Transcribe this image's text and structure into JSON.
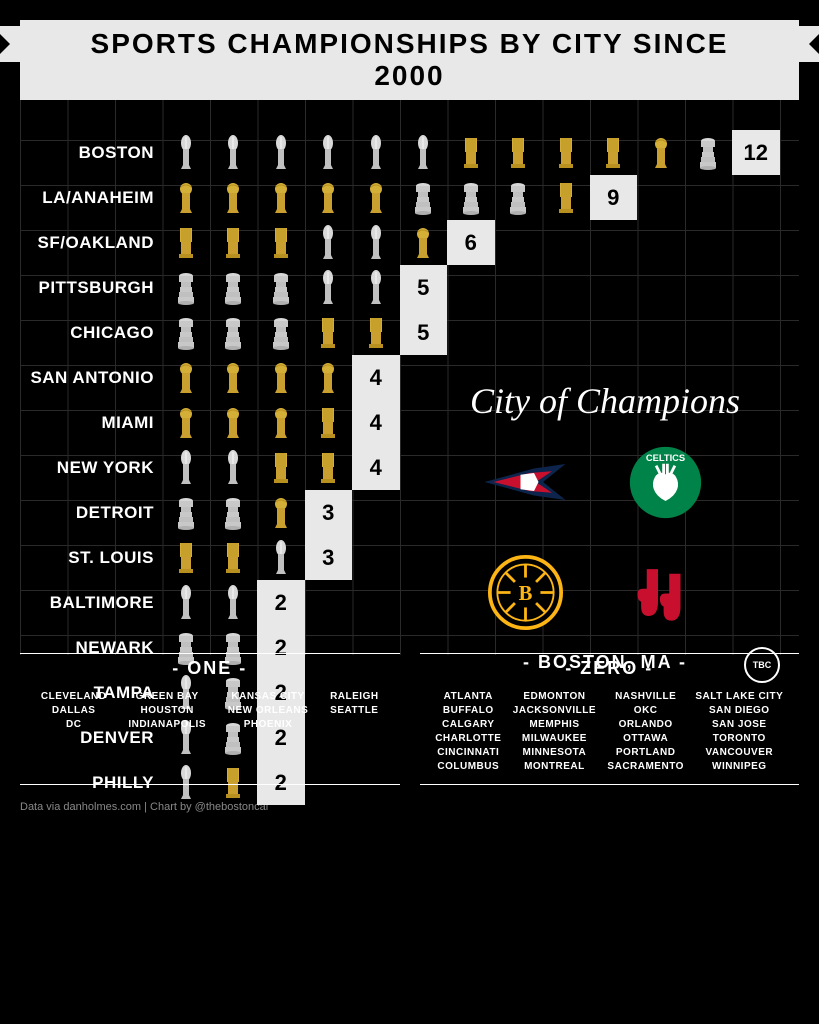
{
  "title": "SPORTS CHAMPIONSHIPS BY CITY SINCE 2000",
  "trophy_types": {
    "nfl": {
      "name": "lombardi",
      "color": "#c0c0c0"
    },
    "nba": {
      "name": "obrien",
      "color": "#d4af37"
    },
    "mlb": {
      "name": "commissioner",
      "color": "#d4af37"
    },
    "nhl": {
      "name": "stanley",
      "color": "#c0c0c0"
    }
  },
  "cities": [
    {
      "name": "BOSTON",
      "trophies": [
        "nfl",
        "nfl",
        "nfl",
        "nfl",
        "nfl",
        "nfl",
        "mlb",
        "mlb",
        "mlb",
        "mlb",
        "nba",
        "nhl"
      ],
      "count": 12
    },
    {
      "name": "LA/ANAHEIM",
      "trophies": [
        "nba",
        "nba",
        "nba",
        "nba",
        "nba",
        "nhl",
        "nhl",
        "nhl",
        "mlb"
      ],
      "count": 9
    },
    {
      "name": "SF/OAKLAND",
      "trophies": [
        "mlb",
        "mlb",
        "mlb",
        "nfl",
        "nfl",
        "nba"
      ],
      "count": 6
    },
    {
      "name": "PITTSBURGH",
      "trophies": [
        "nhl",
        "nhl",
        "nhl",
        "nfl",
        "nfl"
      ],
      "count": 5
    },
    {
      "name": "CHICAGO",
      "trophies": [
        "nhl",
        "nhl",
        "nhl",
        "mlb",
        "mlb"
      ],
      "count": 5
    },
    {
      "name": "SAN ANTONIO",
      "trophies": [
        "nba",
        "nba",
        "nba",
        "nba"
      ],
      "count": 4
    },
    {
      "name": "MIAMI",
      "trophies": [
        "nba",
        "nba",
        "nba",
        "mlb"
      ],
      "count": 4
    },
    {
      "name": "NEW YORK",
      "trophies": [
        "nfl",
        "nfl",
        "mlb",
        "mlb"
      ],
      "count": 4
    },
    {
      "name": "DETROIT",
      "trophies": [
        "nhl",
        "nhl",
        "nba"
      ],
      "count": 3
    },
    {
      "name": "ST. LOUIS",
      "trophies": [
        "mlb",
        "mlb",
        "nfl"
      ],
      "count": 3
    },
    {
      "name": "BALTIMORE",
      "trophies": [
        "nfl",
        "nfl"
      ],
      "count": 2
    },
    {
      "name": "NEWARK",
      "trophies": [
        "nhl",
        "nhl"
      ],
      "count": 2
    },
    {
      "name": "TAMPA",
      "trophies": [
        "nfl",
        "nhl"
      ],
      "count": 2
    },
    {
      "name": "DENVER",
      "trophies": [
        "nfl",
        "nhl"
      ],
      "count": 2
    },
    {
      "name": "PHILLY",
      "trophies": [
        "nfl",
        "mlb"
      ],
      "count": 2
    }
  ],
  "champions": {
    "title": "City of Champions",
    "subtitle": "- BOSTON, MA -"
  },
  "one_section": {
    "title": "- ONE -",
    "cols": [
      [
        "CLEVELAND",
        "DALLAS",
        "DC"
      ],
      [
        "GREEN BAY",
        "HOUSTON",
        "INDIANAPOLIS"
      ],
      [
        "KANSAS CITY",
        "NEW ORLEANS",
        "PHOENIX"
      ],
      [
        "RALEIGH",
        "SEATTLE"
      ]
    ]
  },
  "zero_section": {
    "title": "- ZERO -",
    "cols": [
      [
        "ATLANTA",
        "BUFFALO",
        "CALGARY",
        "CHARLOTTE",
        "CINCINNATI",
        "COLUMBUS"
      ],
      [
        "EDMONTON",
        "JACKSONVILLE",
        "MEMPHIS",
        "MILWAUKEE",
        "MINNESOTA",
        "MONTREAL"
      ],
      [
        "NASHVILLE",
        "OKC",
        "ORLANDO",
        "OTTAWA",
        "PORTLAND",
        "SACRAMENTO"
      ],
      [
        "SALT LAKE CITY",
        "SAN DIEGO",
        "SAN JOSE",
        "TORONTO",
        "VANCOUVER",
        "WINNIPEG"
      ]
    ]
  },
  "footer": "Data via danholmes.com  |  Chart by @thebostoncal",
  "badge": "TBC",
  "colors": {
    "bg": "#000000",
    "grid": "#2a2a2a",
    "banner": "#e8e8e8",
    "text": "#ffffff",
    "gold": "#d4af37",
    "silver": "#c0c0c0"
  }
}
